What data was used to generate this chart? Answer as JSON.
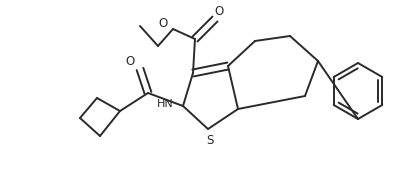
{
  "background_color": "#ffffff",
  "line_color": "#2a2a2a",
  "line_width": 1.4,
  "figsize": [
    4.08,
    1.91
  ],
  "dpi": 100,
  "xlim": [
    0,
    408
  ],
  "ylim": [
    0,
    191
  ]
}
